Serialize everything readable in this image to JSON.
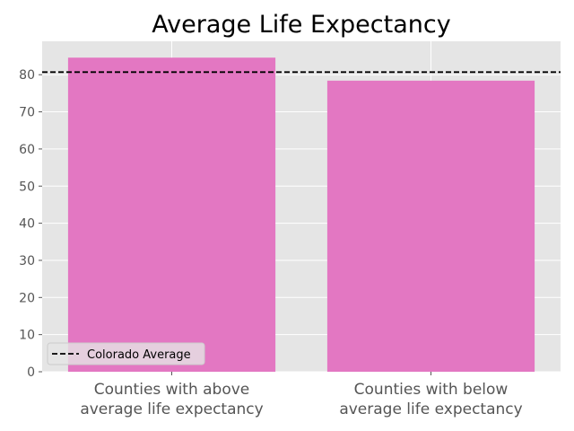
{
  "chart_data": {
    "type": "bar",
    "title": "Average Life Expectancy",
    "xlabel": "",
    "ylabel": "",
    "categories": [
      [
        "Counties with above",
        "average life expectancy"
      ],
      [
        "Counties with below",
        "average life expectancy"
      ]
    ],
    "values": [
      84.6,
      78.4
    ],
    "ylim": [
      0,
      89
    ],
    "yticks": [
      0,
      10,
      20,
      30,
      40,
      50,
      60,
      70,
      80
    ],
    "reference_line": {
      "label": "Colorado Average",
      "value": 80.7,
      "style": "dashed",
      "color": "#000000"
    },
    "legend": {
      "placement": "lower-left",
      "entries": [
        "Colorado Average"
      ]
    },
    "grid": true,
    "colors": {
      "bar": "#E377C2",
      "plot_background": "#E5E5E5",
      "grid": "#FFFFFF",
      "tick_label": "#555555",
      "title": "#000000"
    }
  }
}
